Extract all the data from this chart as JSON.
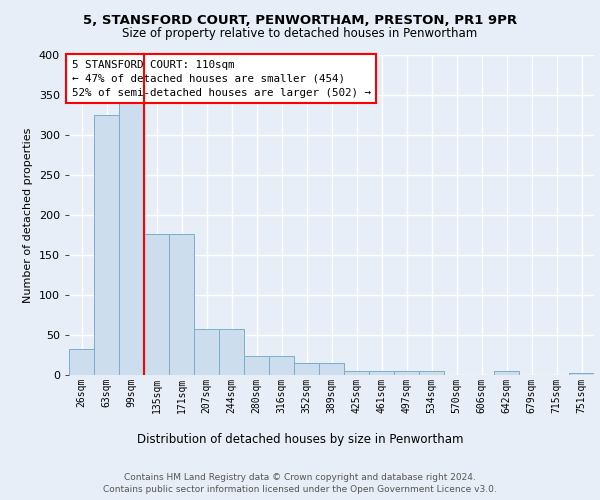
{
  "title1": "5, STANSFORD COURT, PENWORTHAM, PRESTON, PR1 9PR",
  "title2": "Size of property relative to detached houses in Penwortham",
  "xlabel": "Distribution of detached houses by size in Penwortham",
  "ylabel": "Number of detached properties",
  "footer1": "Contains HM Land Registry data © Crown copyright and database right 2024.",
  "footer2": "Contains public sector information licensed under the Open Government Licence v3.0.",
  "bin_labels": [
    "26sqm",
    "63sqm",
    "99sqm",
    "135sqm",
    "171sqm",
    "207sqm",
    "244sqm",
    "280sqm",
    "316sqm",
    "352sqm",
    "389sqm",
    "425sqm",
    "461sqm",
    "497sqm",
    "534sqm",
    "570sqm",
    "606sqm",
    "642sqm",
    "679sqm",
    "715sqm",
    "751sqm"
  ],
  "bar_heights": [
    33,
    325,
    340,
    176,
    176,
    57,
    57,
    24,
    24,
    15,
    15,
    5,
    5,
    5,
    5,
    0,
    0,
    5,
    0,
    0,
    3
  ],
  "bar_color": "#ccdded",
  "bar_edge_color": "#7aaec8",
  "red_line_x": 2.48,
  "annotation_text1": "5 STANSFORD COURT: 110sqm",
  "annotation_text2": "← 47% of detached houses are smaller (454)",
  "annotation_text3": "52% of semi-detached houses are larger (502) →",
  "annotation_box_color": "white",
  "annotation_box_edge_color": "red",
  "ylim": [
    0,
    400
  ],
  "yticks": [
    0,
    50,
    100,
    150,
    200,
    250,
    300,
    350,
    400
  ],
  "background_color": "#e8eef8",
  "grid_color": "white",
  "title1_fontsize": 9.5,
  "title2_fontsize": 8.5
}
